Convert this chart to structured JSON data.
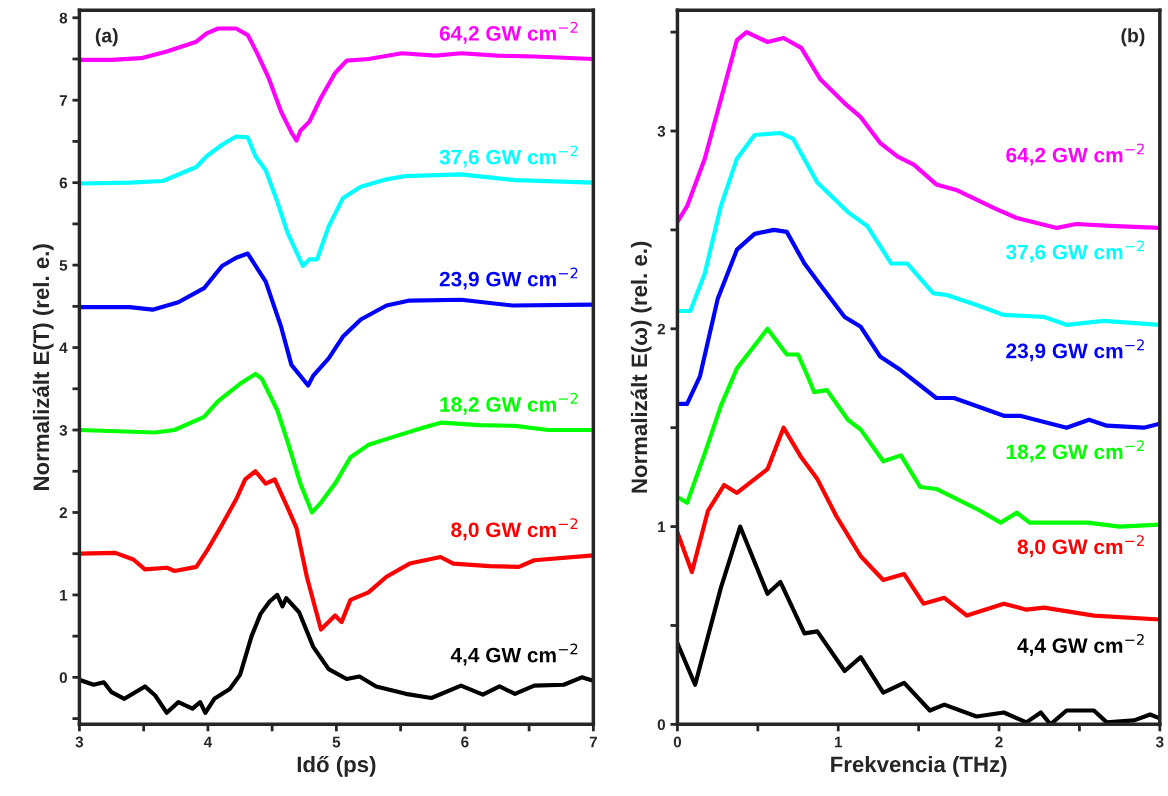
{
  "chart_data": [
    {
      "type": "line",
      "xlabel": "Idő (ps)",
      "ylabel": "Normalizált E(T) (rel. e.)",
      "annotations": [
        "(a)"
      ],
      "xlim": [
        3,
        7
      ],
      "ylim": [
        -0.57,
        8.09
      ],
      "xticks": [
        3,
        {
          "value": 3.5,
          "label": null
        },
        4,
        {
          "value": 4.5,
          "label": null
        },
        5,
        {
          "value": 5.5,
          "label": null
        },
        6,
        {
          "value": 6.5,
          "label": null
        },
        7
      ],
      "yticks": [
        {
          "value": -0.5,
          "label": null
        },
        0,
        {
          "value": 0.5,
          "label": null
        },
        1,
        {
          "value": 1.5,
          "label": null
        },
        2,
        {
          "value": 2.5,
          "label": null
        },
        3,
        {
          "value": 3.5,
          "label": null
        },
        4,
        {
          "value": 4.5,
          "label": null
        },
        5,
        {
          "value": 5.5,
          "label": null
        },
        6,
        {
          "value": 6.5,
          "label": null
        },
        7,
        {
          "value": 7.5,
          "label": null
        },
        8
      ],
      "series": [
        {
          "name": "64,2 GW cm$^{−2}$",
          "color": "#ff00ff",
          "x": [
            3,
            3.25,
            3.48,
            3.68,
            3.91,
            3.99,
            4.08,
            4.22,
            4.31,
            4.38,
            4.47,
            4.57,
            4.65,
            4.69,
            4.72,
            4.79,
            4.88,
            4.99,
            5.08,
            5.25,
            5.51,
            5.77,
            5.97,
            6.25,
            6.54,
            7.0
          ],
          "values": [
            7.49,
            7.49,
            7.51,
            7.59,
            7.71,
            7.81,
            7.87,
            7.87,
            7.79,
            7.58,
            7.28,
            6.86,
            6.61,
            6.51,
            6.63,
            6.74,
            7.03,
            7.33,
            7.48,
            7.5,
            7.57,
            7.54,
            7.57,
            7.54,
            7.53,
            7.5
          ]
        },
        {
          "name": "37,6 GW cm$^{−2}$",
          "color": "#00ffff",
          "x": [
            3,
            3.39,
            3.65,
            3.91,
            3.99,
            4.11,
            4.22,
            4.31,
            4.37,
            4.45,
            4.54,
            4.62,
            4.74,
            4.79,
            4.85,
            4.94,
            5.05,
            5.19,
            5.39,
            5.54,
            5.97,
            6.39,
            7.0
          ],
          "values": [
            5.99,
            6.0,
            6.02,
            6.19,
            6.32,
            6.46,
            6.56,
            6.55,
            6.32,
            6.15,
            5.77,
            5.39,
            4.99,
            5.07,
            5.07,
            5.47,
            5.81,
            5.95,
            6.04,
            6.08,
            6.1,
            6.03,
            6.0
          ]
        },
        {
          "name": "23,9 GW cm$^{−2}$",
          "color": "#0000ff",
          "x": [
            3,
            3.39,
            3.57,
            3.77,
            3.97,
            4.11,
            4.22,
            4.31,
            4.45,
            4.57,
            4.65,
            4.78,
            4.82,
            4.94,
            5.05,
            5.19,
            5.39,
            5.57,
            5.97,
            6.37,
            7.0
          ],
          "values": [
            4.49,
            4.49,
            4.46,
            4.55,
            4.72,
            4.99,
            5.09,
            5.14,
            4.8,
            4.25,
            3.79,
            3.54,
            3.66,
            3.87,
            4.13,
            4.34,
            4.51,
            4.57,
            4.58,
            4.51,
            4.52
          ]
        },
        {
          "name": "18,2 GW cm$^{−2}$",
          "color": "#00ff00",
          "x": [
            3,
            3.59,
            3.74,
            3.97,
            4.08,
            4.25,
            4.37,
            4.42,
            4.54,
            4.62,
            4.72,
            4.81,
            4.88,
            4.99,
            5.11,
            5.25,
            5.45,
            5.68,
            5.82,
            6.11,
            6.39,
            6.65,
            7.0
          ],
          "values": [
            3.0,
            2.97,
            3.0,
            3.16,
            3.35,
            3.56,
            3.68,
            3.62,
            3.24,
            2.86,
            2.35,
            2.0,
            2.12,
            2.35,
            2.67,
            2.82,
            2.92,
            3.03,
            3.09,
            3.06,
            3.05,
            3.0,
            3.0
          ]
        },
        {
          "name": "8,0 GW cm$^{−2}$",
          "color": "#ff0000",
          "x": [
            3,
            3.28,
            3.42,
            3.51,
            3.68,
            3.74,
            3.91,
            3.99,
            4.11,
            4.22,
            4.29,
            4.37,
            4.45,
            4.52,
            4.62,
            4.69,
            4.77,
            4.88,
            4.99,
            5.04,
            5.11,
            5.25,
            5.39,
            5.57,
            5.81,
            5.91,
            6.19,
            6.42,
            6.54,
            7.0
          ],
          "values": [
            1.5,
            1.51,
            1.43,
            1.31,
            1.33,
            1.29,
            1.34,
            1.53,
            1.85,
            2.16,
            2.4,
            2.5,
            2.35,
            2.4,
            2.06,
            1.81,
            1.22,
            0.58,
            0.75,
            0.67,
            0.94,
            1.03,
            1.22,
            1.38,
            1.46,
            1.38,
            1.35,
            1.34,
            1.42,
            1.48
          ]
        },
        {
          "name": "4,4 GW cm$^{−2}$",
          "color": "#000000",
          "x": [
            3,
            3.11,
            3.19,
            3.25,
            3.35,
            3.51,
            3.59,
            3.68,
            3.77,
            3.88,
            3.94,
            3.98,
            4.05,
            4.17,
            4.25,
            4.34,
            4.41,
            4.48,
            4.54,
            4.58,
            4.61,
            4.71,
            4.82,
            4.94,
            5.08,
            5.18,
            5.31,
            5.54,
            5.74,
            5.97,
            6.14,
            6.27,
            6.39,
            6.54,
            6.77,
            6.91,
            7.0
          ],
          "values": [
            -0.03,
            -0.09,
            -0.06,
            -0.18,
            -0.26,
            -0.11,
            -0.22,
            -0.43,
            -0.3,
            -0.38,
            -0.3,
            -0.43,
            -0.26,
            -0.14,
            0.03,
            0.5,
            0.77,
            0.92,
            1.0,
            0.86,
            0.96,
            0.79,
            0.37,
            0.1,
            -0.02,
            0.01,
            -0.11,
            -0.2,
            -0.25,
            -0.1,
            -0.21,
            -0.11,
            -0.2,
            -0.1,
            -0.09,
            0.0,
            -0.04
          ]
        }
      ]
    },
    {
      "type": "line",
      "xlabel": "Frekvencia (THz)",
      "ylabel": "Normalizált E(ω) (rel. e.)",
      "annotations": [
        "(b)"
      ],
      "xlim": [
        0,
        3
      ],
      "ylim": [
        0,
        3.61
      ],
      "xticks": [
        0,
        {
          "value": 0.5,
          "label": null
        },
        1,
        {
          "value": 1.5,
          "label": null
        },
        2,
        {
          "value": 2.5,
          "label": null
        },
        3
      ],
      "yticks": [
        0,
        {
          "value": 0.5,
          "label": null
        },
        1,
        {
          "value": 1.5,
          "label": null
        },
        2,
        {
          "value": 2.5,
          "label": null
        },
        3,
        {
          "value": 3.5,
          "label": null
        }
      ],
      "series": [
        {
          "name": "64,2 GW cm$^{−2}$",
          "color": "#ff00ff",
          "x": [
            0,
            0.06,
            0.17,
            0.27,
            0.37,
            0.43,
            0.56,
            0.66,
            0.77,
            0.89,
            1.04,
            1.14,
            1.26,
            1.37,
            1.47,
            1.61,
            1.74,
            1.97,
            2.11,
            2.36,
            2.48,
            2.69,
            3.0
          ],
          "values": [
            2.54,
            2.62,
            2.86,
            3.16,
            3.46,
            3.5,
            3.45,
            3.47,
            3.42,
            3.26,
            3.14,
            3.07,
            2.94,
            2.87,
            2.83,
            2.73,
            2.7,
            2.61,
            2.56,
            2.51,
            2.53,
            2.52,
            2.51
          ]
        },
        {
          "name": "37,6 GW cm$^{−2}$",
          "color": "#00ffff",
          "x": [
            0,
            0.08,
            0.17,
            0.27,
            0.37,
            0.48,
            0.64,
            0.72,
            0.87,
            1.06,
            1.18,
            1.33,
            1.43,
            1.59,
            1.68,
            1.86,
            2.03,
            2.28,
            2.42,
            2.65,
            3.0
          ],
          "values": [
            2.09,
            2.09,
            2.28,
            2.62,
            2.86,
            2.98,
            2.99,
            2.96,
            2.74,
            2.59,
            2.52,
            2.33,
            2.33,
            2.18,
            2.17,
            2.12,
            2.07,
            2.06,
            2.02,
            2.04,
            2.02
          ]
        },
        {
          "name": "23,9 GW cm$^{−2}$",
          "color": "#0000ff",
          "x": [
            0,
            0.06,
            0.14,
            0.25,
            0.37,
            0.48,
            0.6,
            0.68,
            0.79,
            0.89,
            1.04,
            1.14,
            1.26,
            1.39,
            1.61,
            1.72,
            2.03,
            2.13,
            2.42,
            2.56,
            2.67,
            2.9,
            3.0
          ],
          "values": [
            1.62,
            1.62,
            1.76,
            2.15,
            2.4,
            2.48,
            2.5,
            2.49,
            2.33,
            2.22,
            2.06,
            2.01,
            1.86,
            1.79,
            1.65,
            1.65,
            1.56,
            1.56,
            1.5,
            1.54,
            1.51,
            1.5,
            1.52
          ]
        },
        {
          "name": "18,2 GW cm$^{−2}$",
          "color": "#00ff00",
          "x": [
            0,
            0.06,
            0.17,
            0.27,
            0.37,
            0.56,
            0.68,
            0.75,
            0.81,
            0.85,
            0.93,
            1.06,
            1.14,
            1.28,
            1.39,
            1.51,
            1.61,
            1.86,
            2.01,
            2.11,
            2.19,
            2.55,
            2.75,
            3.0
          ],
          "values": [
            1.15,
            1.12,
            1.37,
            1.61,
            1.8,
            2.0,
            1.87,
            1.87,
            1.76,
            1.68,
            1.69,
            1.54,
            1.49,
            1.33,
            1.36,
            1.2,
            1.19,
            1.09,
            1.02,
            1.07,
            1.02,
            1.02,
            1.0,
            1.01
          ]
        },
        {
          "name": "8,0 GW cm$^{−2}$",
          "color": "#ff0000",
          "x": [
            0,
            0.09,
            0.19,
            0.29,
            0.37,
            0.48,
            0.56,
            0.66,
            0.77,
            0.87,
            0.99,
            1.14,
            1.28,
            1.41,
            1.53,
            1.66,
            1.8,
            2.03,
            2.17,
            2.28,
            2.59,
            3.0
          ],
          "values": [
            0.97,
            0.77,
            1.08,
            1.21,
            1.17,
            1.24,
            1.29,
            1.5,
            1.35,
            1.24,
            1.05,
            0.85,
            0.73,
            0.76,
            0.61,
            0.64,
            0.55,
            0.61,
            0.58,
            0.59,
            0.55,
            0.53
          ]
        },
        {
          "name": "4,4 GW cm$^{−2}$",
          "color": "#000000",
          "x": [
            0,
            0.11,
            0.27,
            0.39,
            0.56,
            0.64,
            0.79,
            0.87,
            1.04,
            1.14,
            1.28,
            1.41,
            1.57,
            1.66,
            1.86,
            2.03,
            2.17,
            2.26,
            2.32,
            2.42,
            2.59,
            2.67,
            2.84,
            2.94,
            3.0
          ],
          "values": [
            0.41,
            0.2,
            0.69,
            1.0,
            0.66,
            0.72,
            0.46,
            0.47,
            0.27,
            0.34,
            0.16,
            0.21,
            0.07,
            0.1,
            0.04,
            0.06,
            0.01,
            0.06,
            0.0,
            0.07,
            0.07,
            0.01,
            0.02,
            0.05,
            0.03
          ]
        }
      ]
    }
  ]
}
